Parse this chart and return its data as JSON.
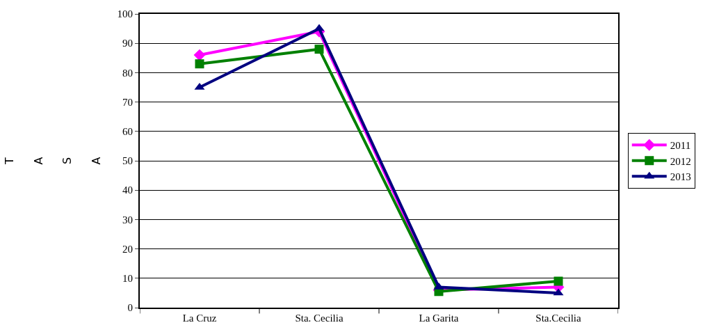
{
  "chart_data": {
    "type": "line",
    "ylabel": "TASA",
    "categories": [
      "La Cruz",
      "Sta. Cecilia",
      "La Garita",
      "Sta.Cecilia"
    ],
    "series": [
      {
        "name": "2011",
        "color": "#ff00ff",
        "marker": "diamond",
        "values": [
          86,
          94,
          6,
          7
        ]
      },
      {
        "name": "2012",
        "color": "#008000",
        "marker": "square",
        "values": [
          83,
          88,
          5.5,
          9
        ]
      },
      {
        "name": "2013",
        "color": "#000080",
        "marker": "triangle",
        "values": [
          75,
          95,
          7,
          5
        ]
      }
    ],
    "ylim": [
      0,
      100
    ],
    "yticks": [
      0,
      10,
      20,
      30,
      40,
      50,
      60,
      70,
      80,
      90,
      100
    ],
    "grid": "y",
    "legend": "right",
    "line_style": "solid"
  }
}
